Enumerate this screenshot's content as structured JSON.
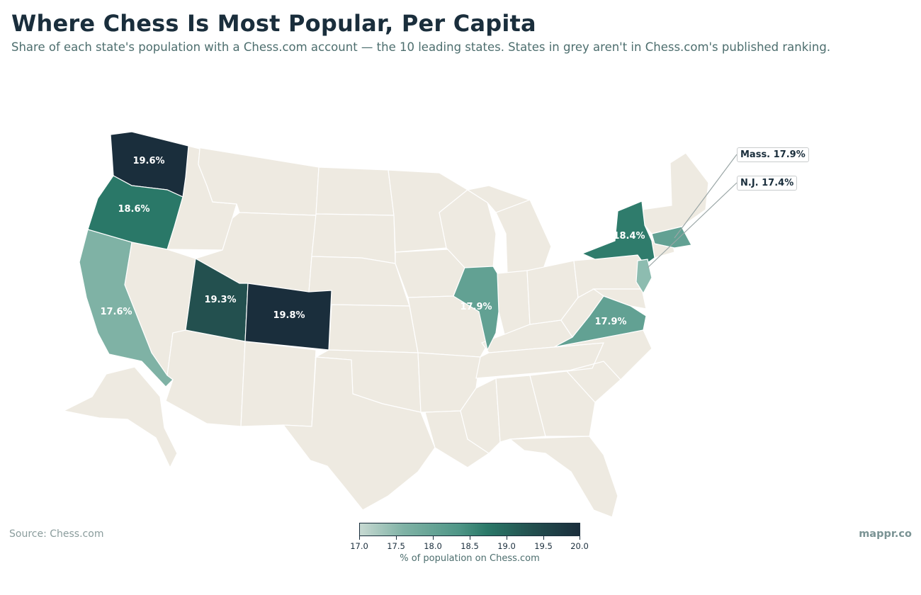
{
  "header": {
    "title": "Where Chess Is Most Popular, Per Capita",
    "subtitle": "Share of each state's population with a Chess.com account — the 10 leading states. States in grey aren't in Chess.com's published ranking."
  },
  "colors": {
    "no_data": "#eeeae1",
    "scale_low": "#c7d9d2",
    "scale_high": "#1a2e3c",
    "label_text": "#ffffff"
  },
  "states": [
    {
      "name": "Washington",
      "label": "19.6%",
      "value": 19.6
    },
    {
      "name": "Oregon",
      "label": "18.6%",
      "value": 18.6
    },
    {
      "name": "California",
      "label": "17.6%",
      "value": 17.6
    },
    {
      "name": "Utah",
      "label": "19.3%",
      "value": 19.3
    },
    {
      "name": "Colorado",
      "label": "19.8%",
      "value": 19.8
    },
    {
      "name": "Illinois",
      "label": "17.9%",
      "value": 17.9
    },
    {
      "name": "New York",
      "label": "18.4%",
      "value": 18.4
    },
    {
      "name": "Virginia",
      "label": "17.9%",
      "value": 17.9
    },
    {
      "name": "Massachusetts",
      "label": "Mass. 17.9%",
      "value": 17.9
    },
    {
      "name": "New Jersey",
      "label": "N.J. 17.4%",
      "value": 17.4
    }
  ],
  "legend": {
    "title": "% of population on Chess.com",
    "ticks": [
      "17.0",
      "17.5",
      "18.0",
      "18.5",
      "19.0",
      "19.5",
      "20.0"
    ],
    "min": 17.0,
    "max": 20.0
  },
  "footer": {
    "source": "Source: Chess.com",
    "brand": "mappr.co"
  }
}
